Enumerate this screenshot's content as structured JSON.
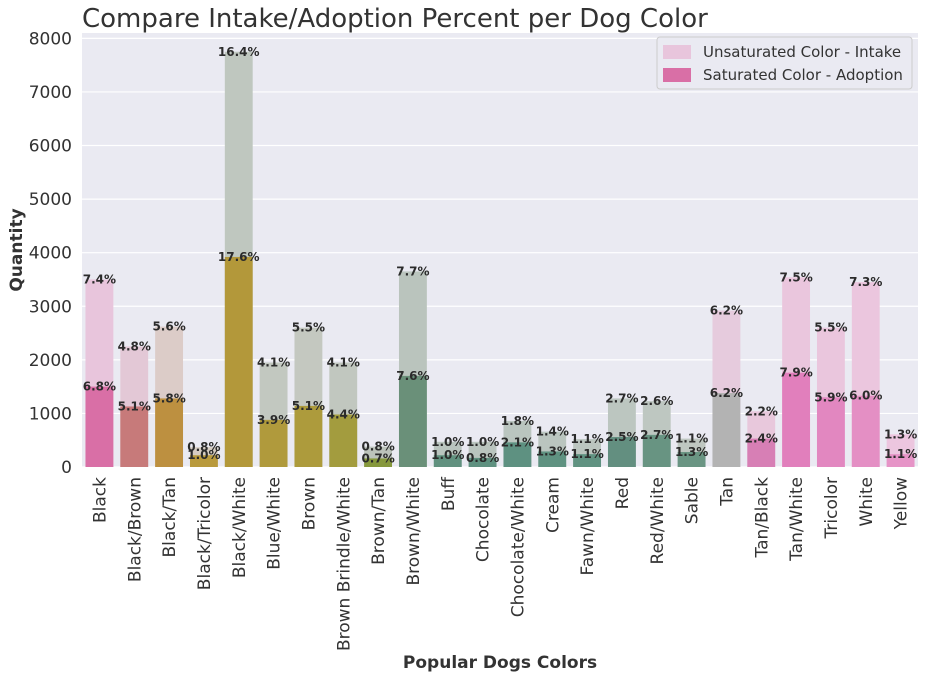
{
  "chart_data": {
    "type": "bar",
    "title": "Compare Intake/Adoption Percent per Dog Color",
    "xlabel": "Popular Dogs Colors",
    "ylabel": "Quantity",
    "ylim": [
      0,
      8100
    ],
    "yticks": [
      0,
      1000,
      2000,
      3000,
      4000,
      5000,
      6000,
      7000,
      8000
    ],
    "grid": true,
    "legend_position": "top-right",
    "categories": [
      "Black",
      "Black/Brown",
      "Black/Tan",
      "Black/Tricolor",
      "Black/White",
      "Blue/White",
      "Brown",
      "Brown Brindle/White",
      "Brown/Tan",
      "Brown/White",
      "Buff",
      "Chocolate",
      "Chocolate/White",
      "Cream",
      "Fawn/White",
      "Red",
      "Red/White",
      "Sable",
      "Tan",
      "Tan/Black",
      "Tan/White",
      "Tricolor",
      "White",
      "Yellow"
    ],
    "series": [
      {
        "name": "Unsaturated Color - Intake",
        "values": [
          3500,
          2250,
          2620,
          370,
          7750,
          1950,
          2600,
          1950,
          380,
          3650,
          470,
          470,
          860,
          660,
          520,
          1280,
          1230,
          530,
          2920,
          1040,
          3540,
          2600,
          3450,
          610
        ],
        "labels": [
          "7.4%",
          "4.8%",
          "5.6%",
          "0.8%",
          "16.4%",
          "4.1%",
          "5.5%",
          "4.1%",
          "0.8%",
          "7.7%",
          "1.0%",
          "1.0%",
          "1.8%",
          "1.4%",
          "1.1%",
          "2.7%",
          "2.6%",
          "1.1%",
          "6.2%",
          "2.2%",
          "7.5%",
          "5.5%",
          "7.3%",
          "1.3%"
        ]
      },
      {
        "name": "Saturated Color - Adoption",
        "values": [
          1500,
          1130,
          1280,
          220,
          3920,
          880,
          1140,
          980,
          160,
          1700,
          220,
          170,
          460,
          290,
          240,
          560,
          600,
          280,
          1380,
          530,
          1760,
          1300,
          1330,
          240
        ],
        "labels": [
          "6.8%",
          "5.1%",
          "5.8%",
          "1.0%",
          "17.6%",
          "3.9%",
          "5.1%",
          "4.4%",
          "0.7%",
          "7.6%",
          "1.0%",
          "0.8%",
          "2.1%",
          "1.3%",
          "1.1%",
          "2.5%",
          "2.7%",
          "1.3%",
          "6.2%",
          "2.4%",
          "7.9%",
          "5.9%",
          "6.0%",
          "1.1%"
        ]
      }
    ],
    "colors": {
      "adoption": [
        "#d96fa6",
        "#c77a7a",
        "#bd9040",
        "#b99a3c",
        "#b3983a",
        "#b09a3c",
        "#ad9b3c",
        "#a39c3e",
        "#86983c",
        "#6a9079",
        "#61917f",
        "#5f9180",
        "#5e9181",
        "#5f9281",
        "#609281",
        "#638f80",
        "#689482",
        "#6a9583",
        "#b3b3b3",
        "#d77fb5",
        "#e17fbc",
        "#e287c0",
        "#e48fc4",
        "#e694c7"
      ],
      "intake": [
        "#e8c5dc",
        "#e3c8d6",
        "#dcccc8",
        "#d6cdc2",
        "#bfc7bf",
        "#c2c8c0",
        "#c4c8c0",
        "#c1c7bf",
        "#bcc3bb",
        "#bac4bd",
        "#b9c4be",
        "#b9c4be",
        "#bac5bf",
        "#bac5bf",
        "#bbc5bf",
        "#bcc6c0",
        "#bec7c1",
        "#bfc7c1",
        "#e6cbdd",
        "#e8c8dc",
        "#eac6dd",
        "#eac6dd",
        "#ebc6de",
        "#ecc6df"
      ]
    }
  }
}
